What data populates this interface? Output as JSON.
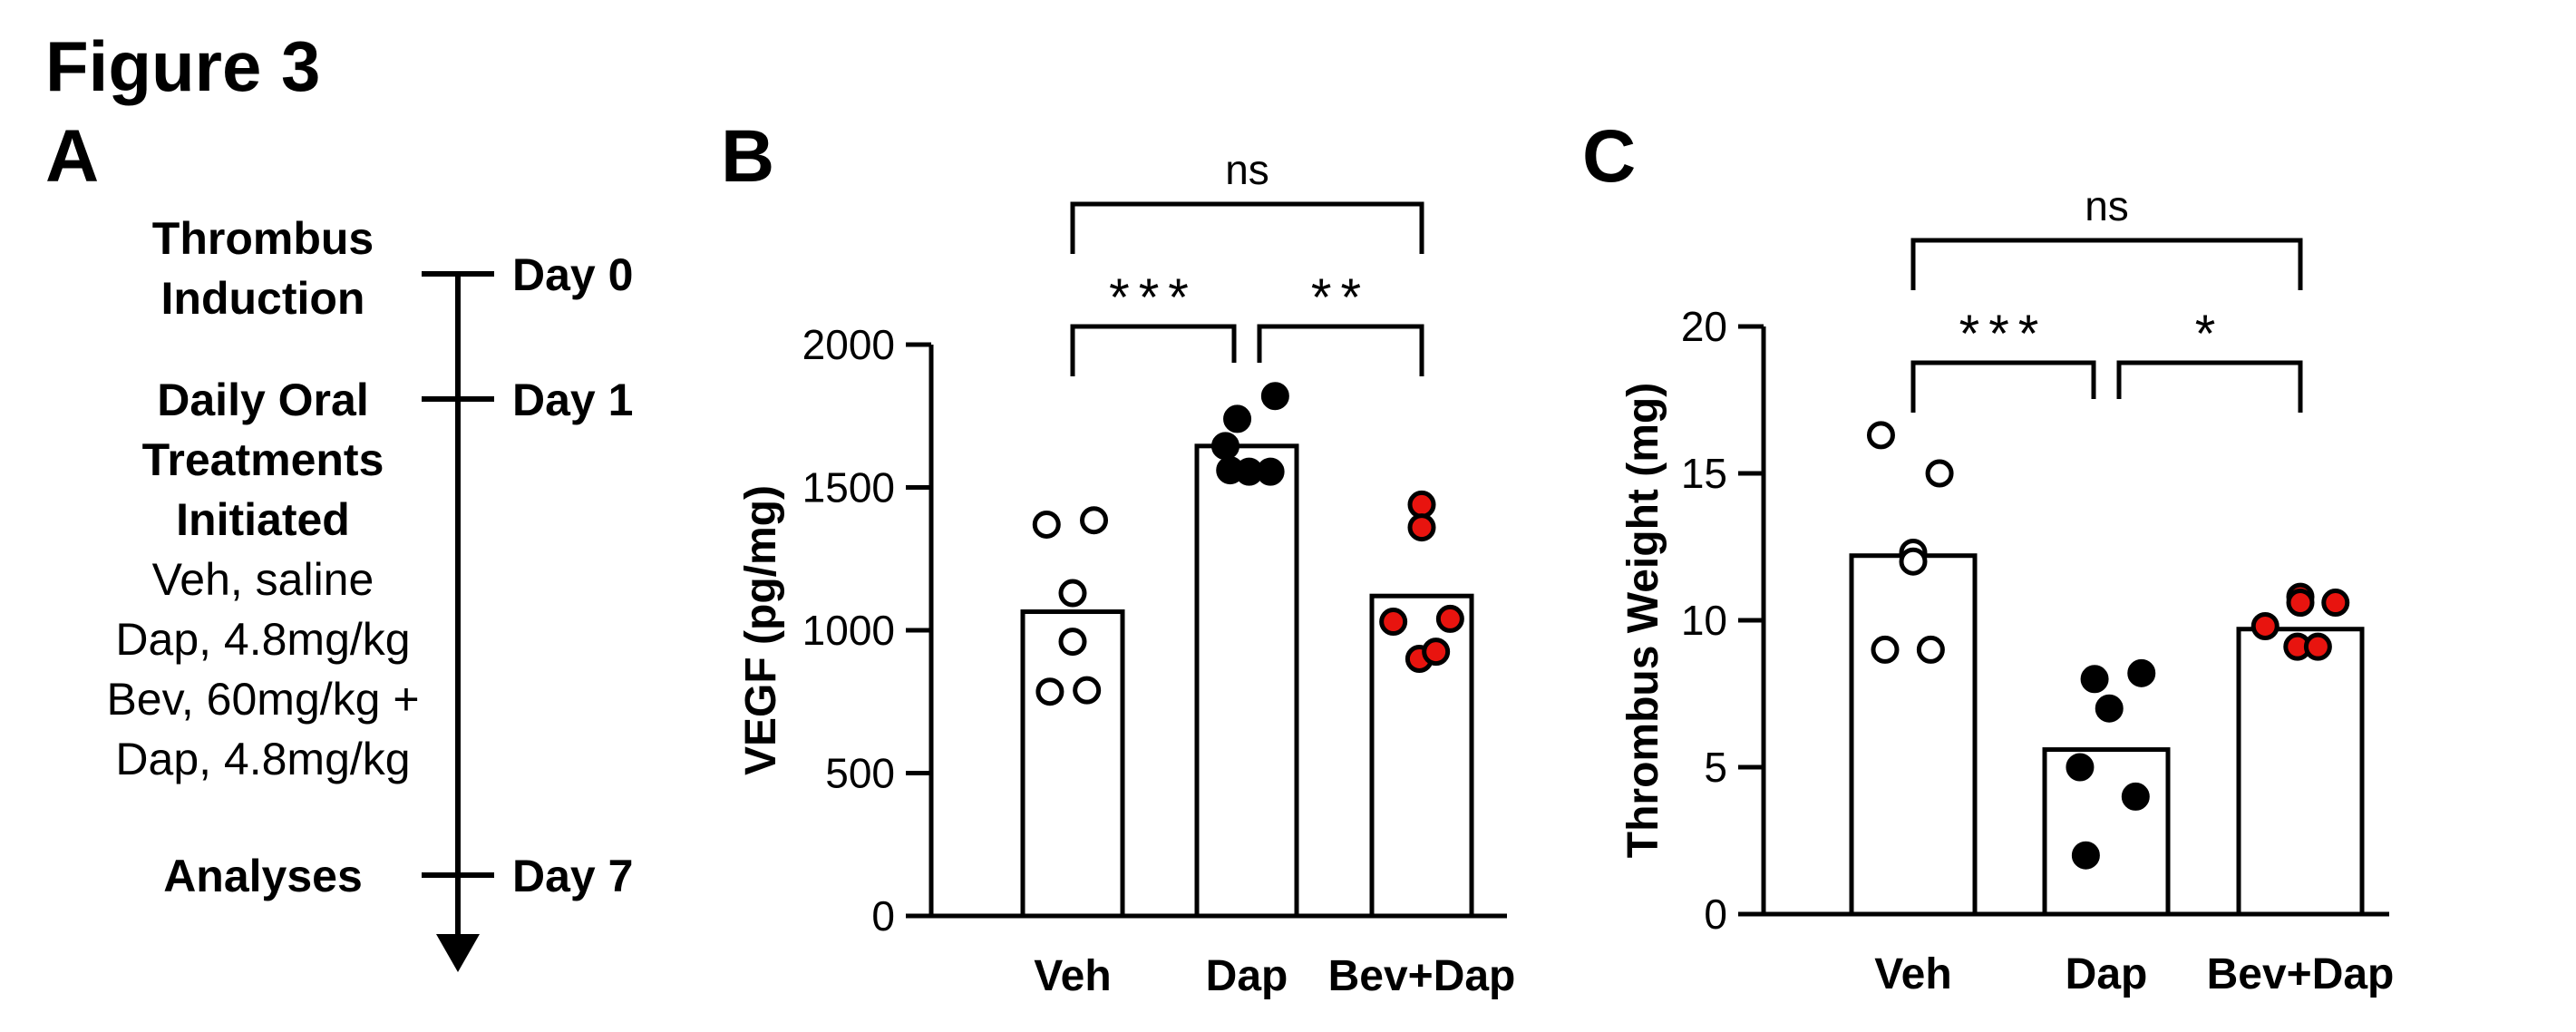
{
  "figure_title": "Figure 3",
  "panel_a": {
    "label": "A",
    "timeline": [
      {
        "day": "Day 0",
        "event_lines": [
          "Thrombus",
          "Induction"
        ],
        "detail_lines": []
      },
      {
        "day": "Day 1",
        "event_lines": [
          "Daily Oral",
          "Treatments",
          "Initiated"
        ],
        "detail_lines": [
          "Veh, saline",
          "Dap, 4.8mg/kg",
          "Bev, 60mg/kg +",
          "Dap, 4.8mg/kg"
        ]
      },
      {
        "day": "Day 7",
        "event_lines": [
          "Analyses"
        ],
        "detail_lines": []
      }
    ]
  },
  "chart_data": [
    {
      "panel": "B",
      "type": "bar",
      "ylabel": "VEGF (pg/mg)",
      "ylim": [
        0,
        2000
      ],
      "yticks": [
        0,
        500,
        1000,
        1500,
        2000
      ],
      "categories": [
        "Veh",
        "Dap",
        "Bev+Dap"
      ],
      "values": [
        1065,
        1645,
        1120
      ],
      "points": [
        [
          1370,
          1385,
          1130,
          960,
          785,
          790
        ],
        [
          1740,
          1820,
          1555,
          1645,
          1555,
          1560
        ],
        [
          1440,
          1360,
          1040,
          1030,
          900,
          925
        ]
      ],
      "point_fill": [
        "#ffffff",
        "#000000",
        "#e8140f"
      ],
      "significance": [
        {
          "pair": [
            0,
            1
          ],
          "label": "***",
          "level": 0
        },
        {
          "pair": [
            1,
            2
          ],
          "label": "**",
          "level": 0
        },
        {
          "pair": [
            0,
            2
          ],
          "label": "ns",
          "level": 1
        }
      ]
    },
    {
      "panel": "C",
      "type": "bar",
      "ylabel": "Thrombus Weight (mg)",
      "ylim": [
        0,
        20
      ],
      "yticks": [
        0,
        5,
        10,
        15,
        20
      ],
      "categories": [
        "Veh",
        "Dap",
        "Bev+Dap"
      ],
      "values": [
        12.2,
        5.6,
        9.7
      ],
      "points": [
        [
          16.3,
          15.0,
          12.3,
          12.0,
          9.0,
          9.0
        ],
        [
          8.0,
          8.2,
          7.0,
          5.0,
          4.0,
          2.0
        ],
        [
          10.8,
          10.6,
          10.6,
          9.8,
          9.1,
          9.1
        ]
      ],
      "point_fill": [
        "#ffffff",
        "#000000",
        "#e8140f"
      ],
      "significance": [
        {
          "pair": [
            0,
            1
          ],
          "label": "***",
          "level": 0
        },
        {
          "pair": [
            1,
            2
          ],
          "label": "*",
          "level": 0
        },
        {
          "pair": [
            0,
            2
          ],
          "label": "ns",
          "level": 1
        }
      ]
    }
  ]
}
